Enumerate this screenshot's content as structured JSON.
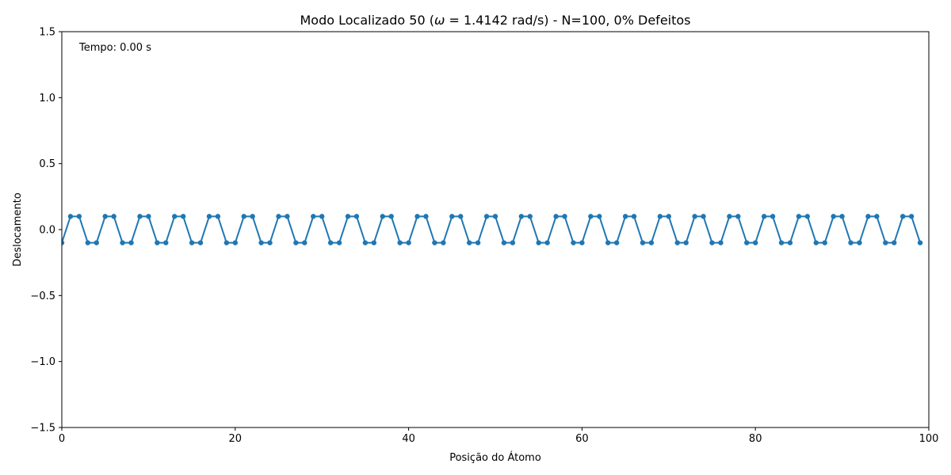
{
  "chart_data": {
    "type": "line",
    "title_parts": [
      "Modo Localizado 50 (",
      "ω",
      " = 1.4142 rad/s) - N=100, 0% Defeitos"
    ],
    "xlabel": "Posição do Átomo",
    "ylabel": "Deslocamento",
    "xlim": [
      0,
      100
    ],
    "ylim": [
      -1.5,
      1.5
    ],
    "xticks": [
      0,
      20,
      40,
      60,
      80,
      100
    ],
    "xtick_labels": [
      "0",
      "20",
      "40",
      "60",
      "80",
      "100"
    ],
    "yticks": [
      -1.5,
      -1.0,
      -0.5,
      0.0,
      0.5,
      1.0,
      1.5
    ],
    "ytick_labels": [
      "−1.5",
      "−1.0",
      "−0.5",
      "0.0",
      "0.5",
      "1.0",
      "1.5"
    ],
    "annotation": "Tempo: 0.00 s",
    "grid": false,
    "series": [
      {
        "color": "#1f77b4",
        "marker": "circle",
        "x": [
          0,
          1,
          2,
          3,
          4,
          5,
          6,
          7,
          8,
          9,
          10,
          11,
          12,
          13,
          14,
          15,
          16,
          17,
          18,
          19,
          20,
          21,
          22,
          23,
          24,
          25,
          26,
          27,
          28,
          29,
          30,
          31,
          32,
          33,
          34,
          35,
          36,
          37,
          38,
          39,
          40,
          41,
          42,
          43,
          44,
          45,
          46,
          47,
          48,
          49,
          50,
          51,
          52,
          53,
          54,
          55,
          56,
          57,
          58,
          59,
          60,
          61,
          62,
          63,
          64,
          65,
          66,
          67,
          68,
          69,
          70,
          71,
          72,
          73,
          74,
          75,
          76,
          77,
          78,
          79,
          80,
          81,
          82,
          83,
          84,
          85,
          86,
          87,
          88,
          89,
          90,
          91,
          92,
          93,
          94,
          95,
          96,
          97,
          98,
          99
        ],
        "y": [
          -0.1,
          0.1,
          0.1,
          -0.1,
          -0.1,
          0.1,
          0.1,
          -0.1,
          -0.1,
          0.1,
          0.1,
          -0.1,
          -0.1,
          0.1,
          0.1,
          -0.1,
          -0.1,
          0.1,
          0.1,
          -0.1,
          -0.1,
          0.1,
          0.1,
          -0.1,
          -0.1,
          0.1,
          0.1,
          -0.1,
          -0.1,
          0.1,
          0.1,
          -0.1,
          -0.1,
          0.1,
          0.1,
          -0.1,
          -0.1,
          0.1,
          0.1,
          -0.1,
          -0.1,
          0.1,
          0.1,
          -0.1,
          -0.1,
          0.1,
          0.1,
          -0.1,
          -0.1,
          0.1,
          0.1,
          -0.1,
          -0.1,
          0.1,
          0.1,
          -0.1,
          -0.1,
          0.1,
          0.1,
          -0.1,
          -0.1,
          0.1,
          0.1,
          -0.1,
          -0.1,
          0.1,
          0.1,
          -0.1,
          -0.1,
          0.1,
          0.1,
          -0.1,
          -0.1,
          0.1,
          0.1,
          -0.1,
          -0.1,
          0.1,
          0.1,
          -0.1,
          -0.1,
          0.1,
          0.1,
          -0.1,
          -0.1,
          0.1,
          0.1,
          -0.1,
          -0.1,
          0.1,
          0.1,
          -0.1,
          -0.1,
          0.1,
          0.1,
          -0.1,
          -0.1,
          0.1,
          0.1,
          -0.1
        ]
      }
    ]
  }
}
